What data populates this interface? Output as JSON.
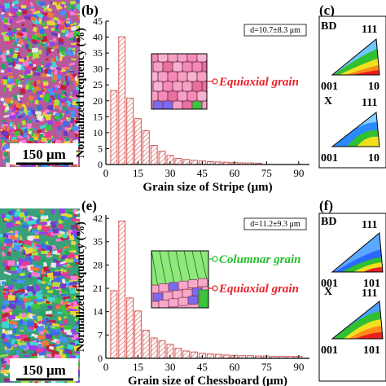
{
  "chart_data": [
    {
      "type": "bar",
      "panel": "(b)",
      "xlabel": "Grain size of Stripe (μm)",
      "ylabel": "Normalized frequency (%)",
      "xlim": [
        0,
        95
      ],
      "ylim": [
        0,
        45
      ],
      "xticks": [
        0,
        15,
        30,
        45,
        60,
        75,
        90
      ],
      "yticks": [
        0,
        5,
        10,
        15,
        20,
        25,
        30,
        35,
        40,
        45
      ],
      "stat_label": "d=10.7±8.3 μm",
      "annotations": [
        "Equiaxial grain"
      ],
      "bin_width": 3.75,
      "x": [
        3.75,
        7.5,
        11.25,
        15,
        18.75,
        22.5,
        26.25,
        30,
        33.75,
        37.5,
        41.25,
        45,
        48.75,
        52.5,
        56.25,
        60,
        63.75,
        67.5,
        71.25
      ],
      "values": [
        23.2,
        40.1,
        20.8,
        14.4,
        10.6,
        6.0,
        4.2,
        2.9,
        1.9,
        1.6,
        1.3,
        1.1,
        0.9,
        0.8,
        0.7,
        0.6,
        0.5,
        0.5,
        0.4
      ],
      "colors": {
        "bar_stroke": "#d9534f"
      }
    },
    {
      "type": "bar",
      "panel": "(e)",
      "xlabel": "Grain size of Chessboard (μm)",
      "ylabel": "Normalized frequency (%)",
      "xlim": [
        0,
        95
      ],
      "ylim": [
        0,
        43
      ],
      "xticks": [
        0,
        15,
        30,
        45,
        60,
        75,
        90
      ],
      "yticks": [
        0,
        7,
        14,
        21,
        28,
        35,
        42
      ],
      "stat_label": "d=11.2±9.3 μm",
      "annotations": [
        "Columnar grain",
        "Equiaxial grain"
      ],
      "bin_width": 3.75,
      "x": [
        3.75,
        7.5,
        11.25,
        15,
        18.75,
        22.5,
        26.25,
        30,
        33.75,
        37.5,
        41.25,
        45,
        48.75,
        52.5,
        56.25,
        60,
        63.75,
        67.5,
        71.25,
        75,
        78.75,
        82.5,
        86.25,
        90
      ],
      "values": [
        20.3,
        41.2,
        18.1,
        14.2,
        8.4,
        6.1,
        5.3,
        4.2,
        3.0,
        2.2,
        1.9,
        1.5,
        1.3,
        1.2,
        1.0,
        0.9,
        0.8,
        0.8,
        0.7,
        0.7,
        0.6,
        0.6,
        0.6,
        0.6
      ],
      "colors": {
        "bar_stroke": "#d9534f"
      }
    }
  ],
  "panels": {
    "b": "(b)",
    "c": "(c)",
    "e": "(e)",
    "f": "(f)"
  },
  "scale_bars": [
    "150 μm",
    "150 μm"
  ],
  "ipf": {
    "c_top": {
      "dir": "BD",
      "corners": [
        "001",
        "111",
        "10"
      ]
    },
    "c_bottom": {
      "dir": "X",
      "corners": [
        "001",
        "111",
        "10"
      ]
    },
    "f_top": {
      "dir": "BD",
      "corners": [
        "001",
        "111",
        "101"
      ]
    },
    "f_bottom": {
      "dir": "X",
      "corners": [
        "001",
        "111",
        "101"
      ]
    }
  },
  "annotation_colors": {
    "equiaxial": "#e8222a",
    "columnar": "#22c02a"
  }
}
